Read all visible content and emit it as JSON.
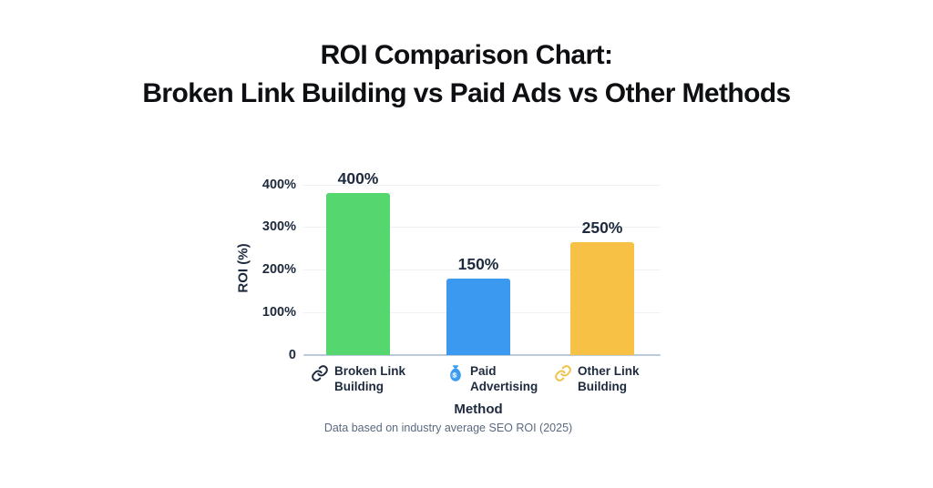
{
  "title": {
    "line1": "ROI Comparison Chart:",
    "line2": "Broken Link Building vs Paid Ads vs Other Methods"
  },
  "chart_data": {
    "type": "bar",
    "title": "ROI Comparison Chart: Broken Link Building vs Paid Ads vs Other Methods",
    "categories": [
      "Broken Link Building",
      "Paid Advertising",
      "Other Link Building"
    ],
    "values": [
      400,
      150,
      250
    ],
    "value_labels": [
      "400%",
      "150%",
      "250%"
    ],
    "bar_colors": [
      "#55d66e",
      "#3b9af0",
      "#f6c144"
    ],
    "bar_visual_pct": [
      381,
      179,
      264
    ],
    "xlabel": "Method",
    "ylabel": "ROI (%)",
    "ylim": [
      0,
      400
    ],
    "y_ticks": [
      {
        "value": 0,
        "label": "0"
      },
      {
        "value": 100,
        "label": "100%"
      },
      {
        "value": 200,
        "label": "200%"
      },
      {
        "value": 300,
        "label": "300%"
      },
      {
        "value": 400,
        "label": "400%"
      }
    ],
    "grid": "faint horizontal gridlines",
    "legend_position": "below x-axis",
    "legend": [
      {
        "icon": "chain-link",
        "icon_color": "#1e2a3d",
        "lines": [
          "Broken Link",
          "Building"
        ]
      },
      {
        "icon": "money-bag",
        "icon_color": "#3b9af0",
        "lines": [
          "Paid",
          "Advertising"
        ]
      },
      {
        "icon": "chain-link",
        "icon_color": "#efc24a",
        "lines": [
          "Other Link",
          "Building"
        ]
      }
    ],
    "caption": "Data based on industry average SEO ROI (2025)"
  }
}
